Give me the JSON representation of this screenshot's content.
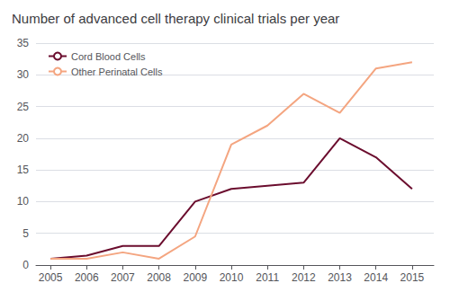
{
  "chart_data": {
    "type": "line",
    "title": "Number of advanced cell therapy clinical trials per year",
    "x": [
      2005,
      2006,
      2007,
      2008,
      2009,
      2010,
      2011,
      2012,
      2013,
      2014,
      2015
    ],
    "series": [
      {
        "name": "Cord Blood Cells",
        "color": "#6b0d2e",
        "values": [
          1,
          1.5,
          3,
          3,
          10,
          12,
          12.5,
          13,
          20,
          17,
          12
        ]
      },
      {
        "name": "Other Perinatal Cells",
        "color": "#f4a580",
        "values": [
          1,
          1,
          2,
          1,
          4.5,
          19,
          22,
          27,
          24,
          31,
          32
        ]
      }
    ],
    "xlim": [
      2004.6,
      2015.6
    ],
    "xticks": [
      2005,
      2006,
      2007,
      2008,
      2009,
      2010,
      2011,
      2012,
      2013,
      2014,
      2015
    ],
    "ylim": [
      0,
      35
    ],
    "yticks": [
      0,
      5,
      10,
      15,
      20,
      25,
      30,
      35
    ],
    "grid": true,
    "legend": "upper left"
  }
}
